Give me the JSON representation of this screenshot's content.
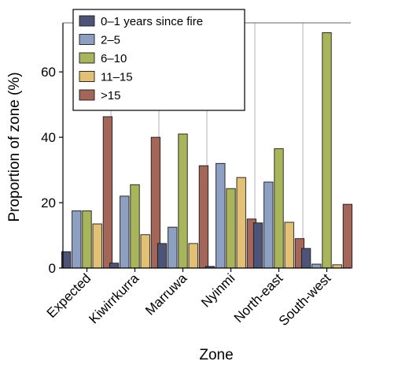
{
  "chart_data": {
    "type": "bar",
    "xlabel": "Zone",
    "ylabel": "Proportion of zone (%)",
    "categories": [
      "Expected",
      "Kiwirrkurra",
      "Marruwa",
      "Nyinmi",
      "North-east",
      "South-west"
    ],
    "ylim": [
      0,
      75
    ],
    "yticks": [
      0,
      20,
      40,
      60
    ],
    "grid": "vertical separators between zones",
    "legend_position": "top-left",
    "series": [
      {
        "name": "0–1 years since fire",
        "color": "#4e5478",
        "values": [
          5.0,
          1.5,
          7.5,
          0.5,
          13.8,
          6.0
        ]
      },
      {
        "name": "2–5",
        "color": "#8da0c2",
        "values": [
          17.5,
          22.0,
          12.5,
          32.0,
          26.3,
          1.2
        ]
      },
      {
        "name": "6–10",
        "color": "#a9b55a",
        "values": [
          17.5,
          25.5,
          41.0,
          24.3,
          36.5,
          72.0
        ]
      },
      {
        "name": "11–15",
        "color": "#e2c174",
        "values": [
          13.5,
          10.2,
          7.5,
          27.7,
          14.0,
          1.0
        ]
      },
      {
        "name": ">15",
        "color": "#a36658",
        "values": [
          46.3,
          40.0,
          31.3,
          15.0,
          9.0,
          19.5
        ]
      }
    ]
  }
}
